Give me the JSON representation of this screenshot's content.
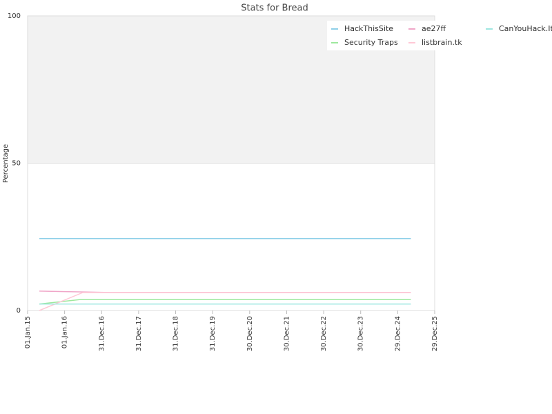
{
  "chart_data": {
    "type": "line",
    "title": "Stats for Bread",
    "y_label": "Percentage",
    "ylim": [
      0,
      100
    ],
    "yticks": [
      0,
      50,
      100
    ],
    "xlim": [
      "2015-01-01",
      "2025-12-29"
    ],
    "xticks": [
      {
        "value": "2015-01-01",
        "label": "01.Jan.15"
      },
      {
        "value": "2016-01-01",
        "label": "01.Jan.16"
      },
      {
        "value": "2016-12-31",
        "label": "31.Dec.16"
      },
      {
        "value": "2017-12-31",
        "label": "31.Dec.17"
      },
      {
        "value": "2018-12-31",
        "label": "31.Dec.18"
      },
      {
        "value": "2019-12-31",
        "label": "31.Dec.19"
      },
      {
        "value": "2020-12-30",
        "label": "30.Dec.20"
      },
      {
        "value": "2021-12-30",
        "label": "30.Dec.21"
      },
      {
        "value": "2022-12-30",
        "label": "30.Dec.22"
      },
      {
        "value": "2023-12-30",
        "label": "30.Dec.23"
      },
      {
        "value": "2024-12-29",
        "label": "29.Dec.24"
      },
      {
        "value": "2025-12-29",
        "label": "29.Dec.25"
      }
    ],
    "series": [
      {
        "name": "HackThisSite",
        "color": "#8ecfe8",
        "x": [
          "2015-04-27",
          "2025-05-08"
        ],
        "values": [
          24.4,
          24.4
        ]
      },
      {
        "name": "Security Traps",
        "color": "#9de89d",
        "x": [
          "2015-04-27",
          "2016-05-26",
          "2025-05-08"
        ],
        "values": [
          2.2,
          3.7,
          3.7
        ]
      },
      {
        "name": "ae27ff",
        "color": "#f0a6c8",
        "x": [
          "2015-04-27",
          "2015-12-30",
          "2017-04-16",
          "2025-05-08"
        ],
        "values": [
          6.6,
          6.4,
          6.1,
          6.1
        ]
      },
      {
        "name": "listbrain.tk",
        "color": "#ffc8d6",
        "x": [
          "2015-04-27",
          "2016-06-28",
          "2025-05-08"
        ],
        "values": [
          0,
          6.1,
          6.1
        ]
      },
      {
        "name": "CanYouHack.It",
        "color": "#9ee6e0",
        "x": [
          "2015-04-27",
          "2025-05-08"
        ],
        "values": [
          2.2,
          2.2
        ]
      }
    ]
  }
}
